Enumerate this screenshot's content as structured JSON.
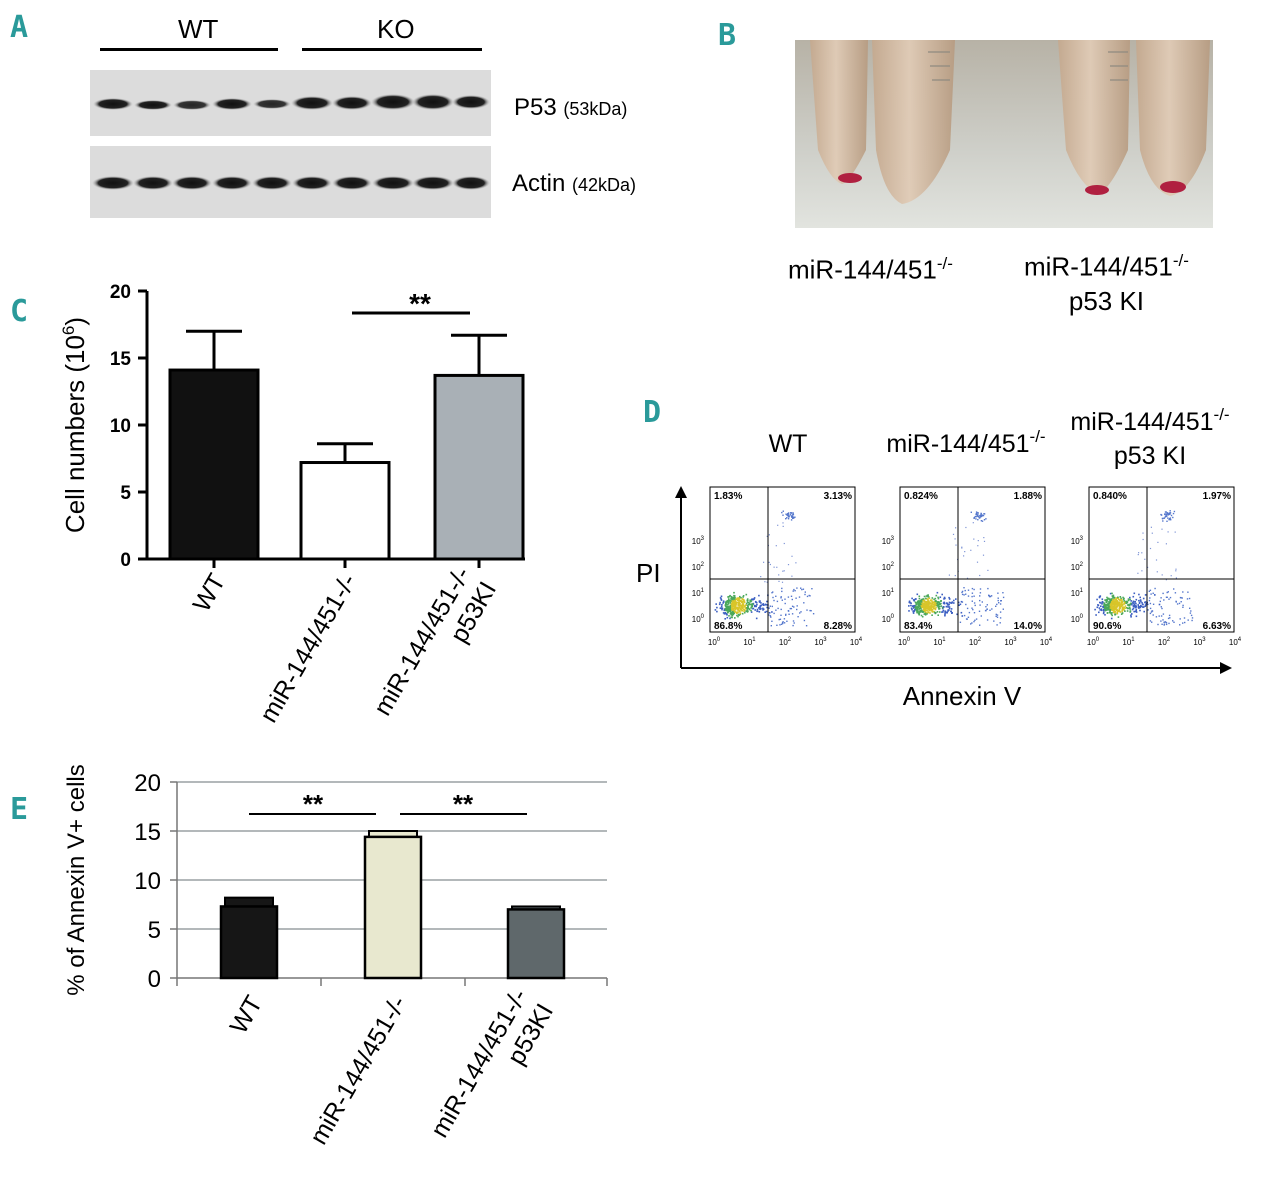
{
  "panels": {
    "A": "A",
    "B": "B",
    "C": "C",
    "D": "D",
    "E": "E"
  },
  "blot": {
    "groups": [
      "WT",
      "KO"
    ],
    "bands": [
      {
        "name": "P53",
        "size": "(53kDa)"
      },
      {
        "name": "Actin",
        "size": "(42kDa)"
      }
    ]
  },
  "photo": {
    "label1": "miR-144/451",
    "label1_sup": "-/-",
    "label2_line1": "miR-144/451",
    "label2_sup": "-/-",
    "label2_line2": "p53 KI"
  },
  "flow": {
    "xlabel": "Annexin V",
    "ylabel": "PI",
    "titles": [
      {
        "line1": "WT",
        "sup": "",
        "line2": ""
      },
      {
        "line1": "miR-144/451",
        "sup": "-/-",
        "line2": ""
      },
      {
        "line1": "miR-144/451",
        "sup": "-/-",
        "line2": "p53 KI"
      }
    ],
    "tick_labels": [
      "0",
      "1",
      "2",
      "3",
      "4"
    ],
    "plots": [
      {
        "ul": "1.83%",
        "ur": "3.13%",
        "ll": "86.8%",
        "lr": "8.28%"
      },
      {
        "ul": "0.824%",
        "ur": "1.88%",
        "ll": "83.4%",
        "lr": "14.0%"
      },
      {
        "ul": "0.840%",
        "ur": "1.97%",
        "ll": "90.6%",
        "lr": "6.63%"
      }
    ]
  },
  "chart_data": [
    {
      "type": "bar",
      "categories": [
        "WT",
        "miR-144/451-/-",
        "miR-144/451-/-\np53KI"
      ],
      "values": [
        14.1,
        7.2,
        13.7
      ],
      "errors": [
        2.9,
        1.4,
        3.0
      ],
      "ylabel": "Cell numbers (10",
      "ylabel_sup": "6",
      "ylabel_end": ")",
      "ylim": [
        0,
        20
      ],
      "yticks": [
        "0",
        "5",
        "10",
        "15",
        "20"
      ],
      "colors": [
        "#111111",
        "#ffffff",
        "#a9b0b6"
      ],
      "significance": "**"
    },
    {
      "type": "bar",
      "categories": [
        "WT",
        "miR-144/451-/-",
        "miR-144/451-/-\np53KI"
      ],
      "values": [
        7.3,
        14.4,
        7.0
      ],
      "errors": [
        0.9,
        0.6,
        0.3
      ],
      "ylabel": "% of Annexin V+ cells",
      "ylim": [
        0,
        20
      ],
      "yticks": [
        "0",
        "5",
        "10",
        "15",
        "20"
      ],
      "colors": [
        "#161616",
        "#e8e8cf",
        "#5f686b"
      ],
      "grid": true,
      "significance": [
        "**",
        "**"
      ]
    }
  ]
}
